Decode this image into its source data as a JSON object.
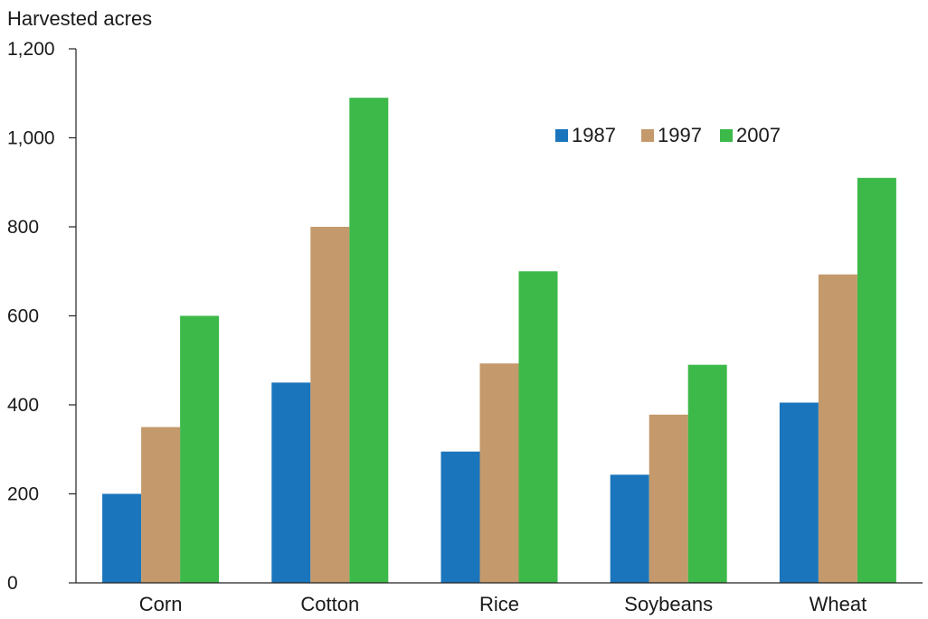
{
  "chart_data": {
    "type": "bar",
    "title": "",
    "ylabel": "Harvested acres",
    "xlabel": "",
    "ylim": [
      0,
      1200
    ],
    "yticks": [
      0,
      200,
      400,
      600,
      800,
      1000,
      1200
    ],
    "ytick_labels": [
      "0",
      "200",
      "400",
      "600",
      "800",
      "1,000",
      "1,200"
    ],
    "categories": [
      "Corn",
      "Cotton",
      "Rice",
      "Soybeans",
      "Wheat"
    ],
    "series": [
      {
        "name": "1987",
        "color": "#1a75bc",
        "values": [
          200,
          450,
          295,
          243,
          405
        ]
      },
      {
        "name": "1997",
        "color": "#c4996b",
        "values": [
          350,
          800,
          493,
          378,
          693
        ]
      },
      {
        "name": "2007",
        "color": "#3db94a",
        "values": [
          600,
          1090,
          700,
          490,
          910
        ]
      }
    ],
    "legend_position": "top-right",
    "grid": false
  }
}
